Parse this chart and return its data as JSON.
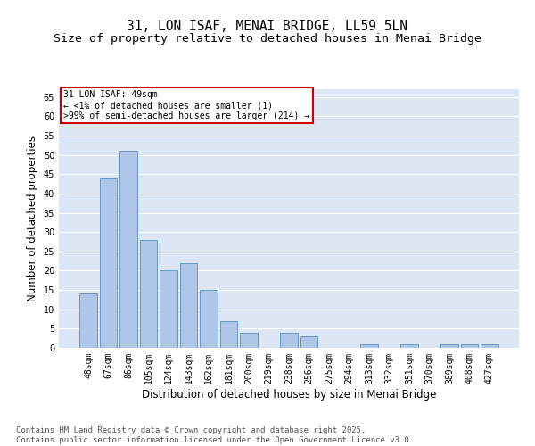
{
  "title": "31, LON ISAF, MENAI BRIDGE, LL59 5LN",
  "subtitle": "Size of property relative to detached houses in Menai Bridge",
  "xlabel": "Distribution of detached houses by size in Menai Bridge",
  "ylabel": "Number of detached properties",
  "categories": [
    "48sqm",
    "67sqm",
    "86sqm",
    "105sqm",
    "124sqm",
    "143sqm",
    "162sqm",
    "181sqm",
    "200sqm",
    "219sqm",
    "238sqm",
    "256sqm",
    "275sqm",
    "294sqm",
    "313sqm",
    "332sqm",
    "351sqm",
    "370sqm",
    "389sqm",
    "408sqm",
    "427sqm"
  ],
  "values": [
    14,
    44,
    51,
    28,
    20,
    22,
    15,
    7,
    4,
    0,
    4,
    3,
    0,
    0,
    1,
    0,
    1,
    0,
    1,
    1,
    1
  ],
  "bar_color": "#aec6e8",
  "bar_edge_color": "#5a8fc0",
  "annotation_line1": "31 LON ISAF: 49sqm",
  "annotation_line2": "← <1% of detached houses are smaller (1)",
  "annotation_line3": ">99% of semi-detached houses are larger (214) →",
  "annotation_box_color": "#ffffff",
  "annotation_box_edge_color": "#cc0000",
  "ylim": [
    0,
    67
  ],
  "yticks": [
    0,
    5,
    10,
    15,
    20,
    25,
    30,
    35,
    40,
    45,
    50,
    55,
    60,
    65
  ],
  "background_color": "#dce6f5",
  "grid_color": "#ffffff",
  "footer_line1": "Contains HM Land Registry data © Crown copyright and database right 2025.",
  "footer_line2": "Contains public sector information licensed under the Open Government Licence v3.0.",
  "title_fontsize": 10.5,
  "subtitle_fontsize": 9.5,
  "xlabel_fontsize": 8.5,
  "ylabel_fontsize": 8.5,
  "tick_fontsize": 7,
  "annotation_fontsize": 7,
  "footer_fontsize": 6.5
}
